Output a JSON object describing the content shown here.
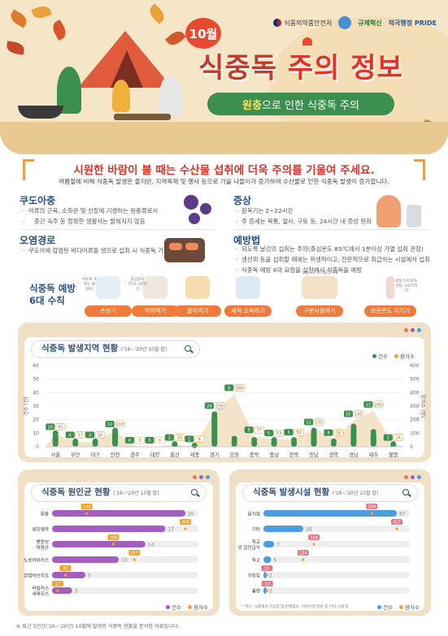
{
  "header": {
    "month": "10월",
    "title_part1": "식중독",
    "title_part2": "주의 정보",
    "subtitle_highlight": "원충",
    "subtitle_rest": "으로 인한 식중독 주의",
    "logos": {
      "mfds": "식품의약품안전처",
      "logo2": "규제혁신",
      "logo3": "적극행정 PRIDE"
    }
  },
  "intro": {
    "title": "시원한 바람이 불 때는 수산물 섭취에 더욱 주의를 기울여 주세요.",
    "desc": "여름철에 비해 식중독 발생은 줄지만, 지역축제 및 행사 등으로 가을 나들이가 증가하여 수산물로 인한 식중독 발생이 증가합니다."
  },
  "sections": {
    "kudoa": {
      "title": "쿠도아충",
      "bullets": [
        "어류의 근육, 소화관 및 신장에 기생하는 원충류로서",
        "중간 숙주 등 정확한 생활사는 밝혀지지 않음"
      ]
    },
    "route": {
      "title": "오염경로",
      "bullets": [
        "쿠도아에 감염된 바다어류를 생으로 섭취 시 식중독 가능"
      ]
    },
    "symptom": {
      "title": "증상",
      "bullets": [
        "잠복기는 2~22시간",
        "주 증세는 복통, 설사, 구토 등, 24시간 내 증상 완화"
      ]
    },
    "prevention": {
      "title": "예방법",
      "bullets": [
        "되도록 날것의 섭취는 주의(중심온도 85℃에서 1분이상 가열 섭취 권장)",
        "생선회 등을 섭취할 때에는 위생적이고, 전문적으로 취급하는 시설에서 섭취",
        "식중독 예방 6대 요령을 실천해서 식중독을 예방"
      ]
    }
  },
  "rules": {
    "title_line1": "식중독 예방",
    "title_line2": "6대 수칙",
    "items": [
      {
        "label": "손씻기",
        "note": "비누로 흐르는 물 30초"
      },
      {
        "label": "익혀먹기",
        "note": "중심온도 75℃ 1분이상"
      },
      {
        "label": "끓여먹기",
        "note": ""
      },
      {
        "label": "세척·소독하기",
        "note": ""
      },
      {
        "label": "구분사용하기",
        "note": "날음식과 조리음식 구분"
      },
      {
        "label": "보관온도 지키기",
        "note": "냉장 5℃이하, 냉동 -18℃이하"
      }
    ]
  },
  "chart_region": {
    "title": "식중독 발생지역 현황",
    "period": "('16~'20년 10월 합)",
    "legend": [
      "건수",
      "환자수"
    ],
    "ylabel_left": "건수 (건)",
    "ylabel_right": "환자수 (명)"
  },
  "chart_pathogen": {
    "title": "식중독 원인균 현황",
    "period": "('16~'20년 10월 합)",
    "legend": [
      "건수",
      "환자수"
    ]
  },
  "chart_facility": {
    "title": "식중독 발생시설 현황",
    "period": "('16~'20년 10월 합)",
    "legend": [
      "건수",
      "환자수"
    ],
    "note": "* 기타 : 식품제조·가공업 및 판매업소, 어린이집·병원 및 기타 시설 등"
  },
  "footnote": "※ 최근 5년간('16~'20년) 10월에 발생한 식중독 현황을 분석한 자료입니다.",
  "colors": {
    "green": "#3d8f4f",
    "blue": "#4a9ee0",
    "purple": "#a45ec0",
    "orange": "#f0a22e",
    "red": "#d6352a"
  },
  "chart_data": [
    {
      "type": "bar",
      "title": "식중독 발생지역 현황",
      "categories": [
        "서울",
        "부산",
        "대구",
        "인천",
        "광주",
        "대전",
        "울산",
        "세종",
        "경기",
        "강원",
        "충북",
        "충남",
        "전북",
        "전남",
        "경북",
        "경남",
        "제주",
        "불명"
      ],
      "series": [
        {
          "name": "건수",
          "values": [
            10,
            4,
            4,
            12,
            0,
            0,
            2,
            1,
            24,
            6,
            5,
            5,
            5,
            12,
            4,
            15,
            11,
            2
          ]
        },
        {
          "name": "환자수",
          "values": [
            95,
            37,
            35,
            118,
            0,
            0,
            15,
            6,
            256,
            388,
            77,
            53,
            59,
            135,
            56,
            195,
            265,
            14
          ]
        }
      ],
      "ylim": [
        0,
        60
      ],
      "y2lim": [
        0,
        600
      ],
      "yticks": [
        0,
        10,
        20,
        30,
        40,
        50,
        60
      ],
      "y2ticks": [
        0,
        100,
        200,
        300,
        400,
        500,
        600
      ]
    },
    {
      "type": "bar",
      "title": "식중독 원인균 현황",
      "categories": [
        "원충",
        "살모넬라",
        "병원성 대장균",
        "노로바이러스",
        "장염비브리오",
        "바실러스 세레우스"
      ],
      "series": [
        {
          "name": "건수",
          "values": [
            20,
            17,
            14,
            10,
            5,
            3
          ]
        },
        {
          "name": "환자수",
          "values": [
            104,
            400,
            184,
            247,
            40,
            17
          ]
        }
      ]
    },
    {
      "type": "bar",
      "title": "식중독 발생시설 현황",
      "categories": [
        "음식점",
        "기타",
        "학교 외 집단급식",
        "학교",
        "가정집",
        "불명"
      ],
      "series": [
        {
          "name": "건수",
          "values": [
            87,
            26,
            7,
            5,
            2,
            2
          ]
        },
        {
          "name": "환자수",
          "values": [
            339,
            417,
            158,
            124,
            11,
            12
          ]
        }
      ]
    }
  ]
}
